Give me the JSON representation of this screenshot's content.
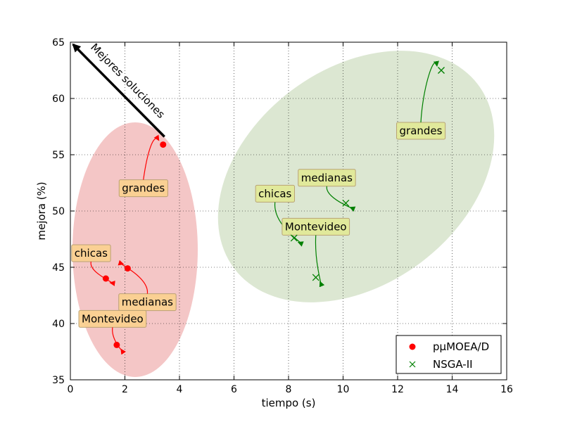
{
  "chart_data": {
    "type": "scatter",
    "xlabel": "tiempo (s)",
    "ylabel": "mejora (%)",
    "xlim": [
      0,
      16
    ],
    "ylim": [
      35,
      65
    ],
    "xticks": [
      0,
      2,
      4,
      6,
      8,
      10,
      12,
      14,
      16
    ],
    "yticks": [
      35,
      40,
      45,
      50,
      55,
      60,
      65
    ],
    "grid": true,
    "legend_position": "lower-right",
    "series": [
      {
        "name": "pμMOEA/D",
        "marker": "circle",
        "color": "#ff0000",
        "points": [
          {
            "x": 1.3,
            "y": 44.0,
            "label": "chicas"
          },
          {
            "x": 2.1,
            "y": 44.9,
            "label": "medianas"
          },
          {
            "x": 1.7,
            "y": 38.1,
            "label": "Montevideo"
          },
          {
            "x": 3.4,
            "y": 55.9,
            "label": "grandes"
          }
        ]
      },
      {
        "name": "NSGA-II",
        "marker": "x",
        "color": "#008000",
        "points": [
          {
            "x": 8.2,
            "y": 47.6,
            "label": "chicas"
          },
          {
            "x": 10.1,
            "y": 50.7,
            "label": "medianas"
          },
          {
            "x": 9.0,
            "y": 44.1,
            "label": "Montevideo"
          },
          {
            "x": 13.6,
            "y": 62.5,
            "label": "grandes"
          }
        ]
      }
    ],
    "annotation_arrow": {
      "text": "Mejores soluciones",
      "from": {
        "x": 3.45,
        "y": 56.6
      },
      "to": {
        "x": 0.1,
        "y": 64.8
      }
    },
    "colors": {
      "red_region": "#f4c6c6",
      "green_region": "#dce7d2",
      "red_label_box": "#fbd191",
      "green_label_box": "#e2ea99"
    }
  }
}
